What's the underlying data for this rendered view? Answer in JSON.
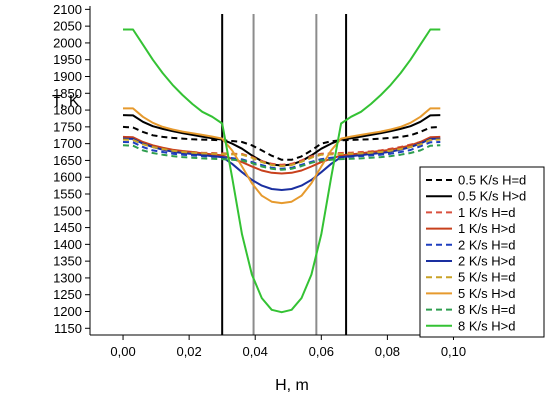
{
  "chart_data": {
    "type": "line",
    "xlabel": "H, m",
    "ylabel": "T, K",
    "xlim": [
      -0.01,
      0.105
    ],
    "ylim": [
      1130,
      2110
    ],
    "x_ticks": [
      0.0,
      0.02,
      0.04,
      0.06,
      0.08,
      0.1
    ],
    "x_tick_labels": [
      "0,00",
      "0,02",
      "0,04",
      "0,06",
      "0,08",
      "0,10"
    ],
    "y_ticks": [
      1150,
      1200,
      1250,
      1300,
      1350,
      1400,
      1450,
      1500,
      1550,
      1600,
      1650,
      1700,
      1750,
      1800,
      1850,
      1900,
      1950,
      2000,
      2050,
      2100
    ],
    "y_tick_labels": [
      "1150",
      "1200",
      "1250",
      "1300",
      "1350",
      "1400",
      "1450",
      "1500",
      "1550",
      "1600",
      "1650",
      "1700",
      "1750",
      "1800",
      "1850",
      "1900",
      "1950",
      "2000",
      "2050",
      "2100"
    ],
    "grid": false,
    "legend_position": "right",
    "vertical_lines": [
      {
        "x": 0.03,
        "color": "#000000"
      },
      {
        "x": 0.0395,
        "color": "#8c8c8c"
      },
      {
        "x": 0.0585,
        "color": "#8c8c8c"
      },
      {
        "x": 0.0675,
        "color": "#000000"
      }
    ],
    "x": [
      0.0,
      0.003,
      0.006,
      0.009,
      0.012,
      0.015,
      0.018,
      0.021,
      0.024,
      0.027,
      0.03,
      0.033,
      0.036,
      0.039,
      0.042,
      0.045,
      0.048,
      0.051,
      0.054,
      0.057,
      0.06,
      0.063,
      0.066,
      0.069,
      0.072,
      0.075,
      0.078,
      0.081,
      0.084,
      0.087,
      0.09,
      0.093,
      0.096
    ],
    "series": [
      {
        "name": "0.5 K/s H=d",
        "color": "#000000",
        "dash": true,
        "values": [
          1750,
          1748,
          1735,
          1725,
          1720,
          1717,
          1715,
          1713,
          1712,
          1711,
          1710,
          1708,
          1705,
          1695,
          1680,
          1664,
          1652,
          1652,
          1662,
          1680,
          1700,
          1707,
          1710,
          1711,
          1712,
          1713,
          1715,
          1717,
          1720,
          1725,
          1735,
          1748,
          1750
        ]
      },
      {
        "name": "0.5 K/s H>d",
        "color": "#000000",
        "dash": false,
        "values": [
          1785,
          1784,
          1765,
          1752,
          1744,
          1737,
          1731,
          1726,
          1721,
          1716,
          1712,
          1700,
          1685,
          1665,
          1648,
          1638,
          1635,
          1638,
          1648,
          1665,
          1685,
          1700,
          1712,
          1716,
          1721,
          1726,
          1731,
          1737,
          1744,
          1752,
          1765,
          1784,
          1785
        ]
      },
      {
        "name": "1 K/s H=d",
        "color": "#d9503f",
        "dash": true,
        "values": [
          1713,
          1712,
          1700,
          1690,
          1685,
          1680,
          1677,
          1675,
          1673,
          1672,
          1671,
          1670,
          1669,
          1660,
          1648,
          1640,
          1637,
          1640,
          1650,
          1662,
          1670,
          1671,
          1672,
          1673,
          1675,
          1677,
          1680,
          1685,
          1690,
          1697,
          1705,
          1712,
          1713
        ]
      },
      {
        "name": "1 K/s H>d",
        "color": "#c8401c",
        "dash": false,
        "values": [
          1720,
          1719,
          1705,
          1695,
          1688,
          1682,
          1678,
          1675,
          1671,
          1668,
          1665,
          1655,
          1645,
          1632,
          1620,
          1613,
          1611,
          1613,
          1620,
          1632,
          1645,
          1655,
          1665,
          1668,
          1671,
          1675,
          1678,
          1682,
          1688,
          1695,
          1705,
          1719,
          1720
        ]
      },
      {
        "name": "2 K/s H=d",
        "color": "#1f3fbf",
        "dash": true,
        "values": [
          1705,
          1704,
          1690,
          1680,
          1675,
          1670,
          1667,
          1665,
          1663,
          1661,
          1660,
          1657,
          1653,
          1645,
          1636,
          1628,
          1625,
          1628,
          1637,
          1646,
          1654,
          1658,
          1660,
          1661,
          1663,
          1665,
          1667,
          1670,
          1675,
          1681,
          1692,
          1704,
          1705
        ]
      },
      {
        "name": "2 K/s H>d",
        "color": "#1a2fa0",
        "dash": false,
        "values": [
          1715,
          1714,
          1700,
          1690,
          1682,
          1676,
          1672,
          1669,
          1666,
          1663,
          1660,
          1640,
          1615,
          1592,
          1575,
          1565,
          1562,
          1565,
          1575,
          1592,
          1615,
          1640,
          1660,
          1663,
          1666,
          1669,
          1672,
          1676,
          1682,
          1690,
          1700,
          1714,
          1715
        ]
      },
      {
        "name": "5 K/s H=d",
        "color": "#c9a227",
        "dash": true,
        "values": [
          1712,
          1711,
          1698,
          1690,
          1684,
          1679,
          1675,
          1673,
          1671,
          1670,
          1669,
          1668,
          1667,
          1658,
          1645,
          1636,
          1633,
          1636,
          1646,
          1658,
          1667,
          1668,
          1669,
          1670,
          1671,
          1673,
          1675,
          1679,
          1684,
          1690,
          1698,
          1711,
          1712
        ]
      },
      {
        "name": "5 K/s H>d",
        "color": "#e69a2e",
        "dash": false,
        "values": [
          1805,
          1805,
          1780,
          1762,
          1750,
          1742,
          1736,
          1731,
          1726,
          1721,
          1715,
          1680,
          1632,
          1582,
          1545,
          1527,
          1523,
          1527,
          1545,
          1582,
          1632,
          1680,
          1715,
          1721,
          1726,
          1731,
          1736,
          1742,
          1750,
          1762,
          1780,
          1805,
          1805
        ]
      },
      {
        "name": "8 K/s H=d",
        "color": "#2f9e4f",
        "dash": true,
        "values": [
          1695,
          1694,
          1680,
          1672,
          1667,
          1663,
          1660,
          1658,
          1656,
          1655,
          1654,
          1652,
          1650,
          1642,
          1632,
          1625,
          1622,
          1625,
          1633,
          1643,
          1650,
          1652,
          1654,
          1655,
          1656,
          1658,
          1660,
          1663,
          1667,
          1672,
          1680,
          1694,
          1695
        ]
      },
      {
        "name": "8 K/s H>d",
        "color": "#34c234",
        "dash": false,
        "values": [
          2040,
          2040,
          1995,
          1950,
          1910,
          1875,
          1845,
          1818,
          1795,
          1780,
          1760,
          1600,
          1430,
          1310,
          1240,
          1205,
          1198,
          1205,
          1240,
          1310,
          1430,
          1600,
          1760,
          1780,
          1795,
          1818,
          1845,
          1875,
          1910,
          1950,
          1995,
          2040,
          2040
        ]
      }
    ]
  }
}
